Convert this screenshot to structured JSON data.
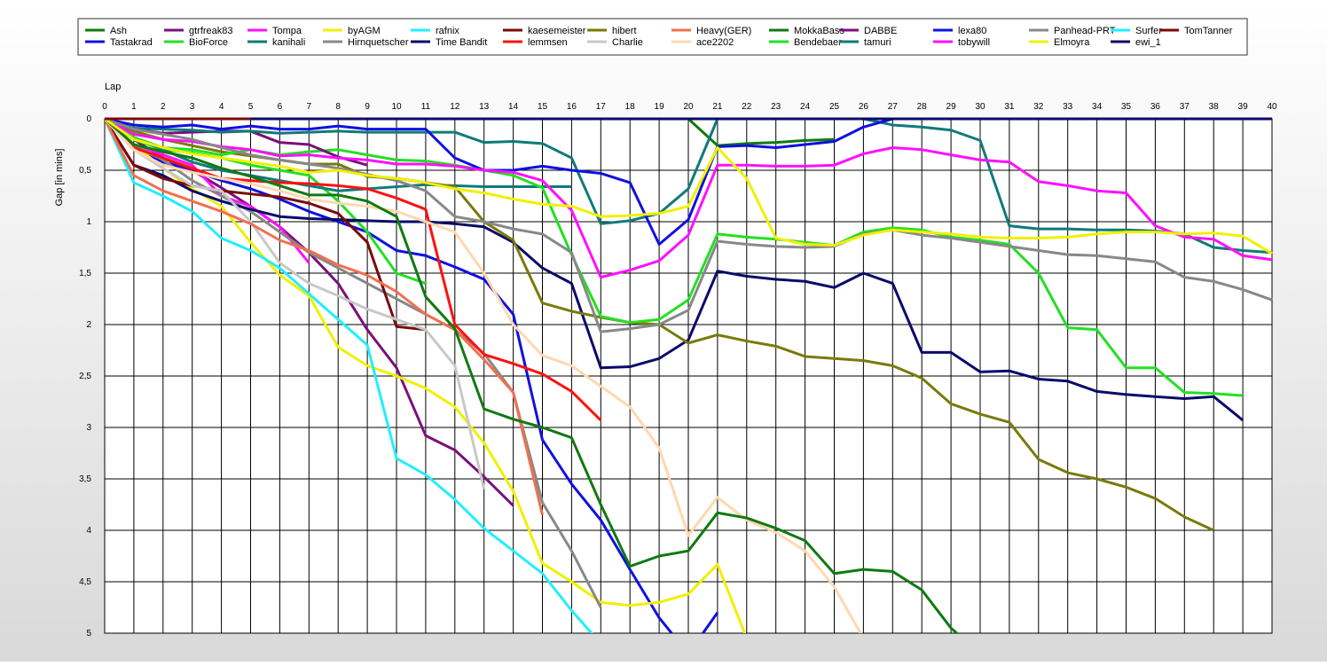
{
  "chart_data": {
    "type": "line",
    "xlabel": "Lap",
    "ylabel": "Gap [in mins]",
    "xlim": [
      0,
      40
    ],
    "ylim": [
      0,
      5
    ],
    "y_inverted": true,
    "grid": true,
    "legend_position": "top",
    "x_ticks": [
      "0",
      "1",
      "2",
      "3",
      "4",
      "5",
      "6",
      "7",
      "8",
      "9",
      "10",
      "11",
      "12",
      "13",
      "14",
      "15",
      "16",
      "17",
      "18",
      "19",
      "20",
      "21",
      "22",
      "23",
      "24",
      "25",
      "26",
      "27",
      "28",
      "29",
      "30",
      "31",
      "32",
      "33",
      "34",
      "35",
      "36",
      "37",
      "38",
      "39",
      "40"
    ],
    "y_ticks": [
      "0",
      "0.5",
      "1",
      "1.5",
      "2",
      "2.5",
      "3",
      "3.5",
      "4",
      "4.5",
      "5"
    ],
    "series": [
      {
        "name": "Ash",
        "color": "#0f7a0f",
        "values": [
          0,
          0,
          0,
          0,
          0,
          0,
          0,
          0,
          0,
          0,
          0,
          0,
          0,
          0,
          0,
          0,
          0,
          0,
          0,
          0,
          0,
          0.26,
          0.24,
          0.23,
          0.21,
          0.2
        ]
      },
      {
        "name": "Tastakrad",
        "color": "#1010e0",
        "values": [
          0,
          0.3,
          0.42,
          0.5,
          0.6,
          0.68,
          0.78,
          0.9,
          1.0,
          1.1,
          1.28,
          1.33,
          1.44,
          1.56,
          1.9,
          3.12,
          3.55,
          3.9,
          4.38,
          4.85,
          5.2,
          4.8
        ]
      },
      {
        "name": "gtrfreak83",
        "color": "#7a107a",
        "values": [
          0,
          0.2,
          0.38,
          0.5,
          0.67,
          0.85,
          1.05,
          1.3,
          1.6,
          2.05,
          2.42,
          3.08,
          3.22,
          3.48,
          3.76
        ]
      },
      {
        "name": "BioForce",
        "color": "#22e022",
        "values": [
          0,
          0.2,
          0.3,
          0.33,
          0.38,
          0.45,
          0.5,
          0.55,
          0.8,
          1.1,
          1.5,
          1.6
        ]
      },
      {
        "name": "Tompa",
        "color": "#ff10ff",
        "values": [
          0,
          0.25,
          0.35,
          0.45,
          0.75,
          0.85,
          1.05,
          1.4
        ]
      },
      {
        "name": "kanihali",
        "color": "#107a7a",
        "values": [
          0,
          0.18,
          0.3,
          0.42,
          0.5,
          0.55,
          0.6,
          0.65,
          0.7,
          0.68,
          0.66,
          0.64,
          0.65,
          0.66,
          0.66,
          0.66,
          0.66
        ]
      },
      {
        "name": "byAGM",
        "color": "#f0f000",
        "values": [
          0,
          0.25,
          0.48,
          0.68,
          0.85,
          1.2,
          1.52,
          1.72,
          2.22,
          2.4,
          2.5,
          2.62,
          2.8,
          3.15,
          3.62,
          4.32,
          4.5,
          4.7,
          4.73,
          4.7,
          4.62,
          4.33,
          5.05
        ]
      },
      {
        "name": "Hirnquetscher",
        "color": "#888888",
        "values": [
          0,
          0.25,
          0.4,
          0.6,
          0.75,
          0.9,
          1.1,
          1.3,
          1.45,
          1.6,
          1.75,
          1.9,
          2.05,
          2.28,
          2.66,
          3.73,
          4.2,
          4.75
        ]
      },
      {
        "name": "rafnix",
        "color": "#22eeff",
        "values": [
          0,
          0.62,
          0.75,
          0.9,
          1.16,
          1.28,
          1.45,
          1.7,
          1.95,
          2.2,
          3.3,
          3.46,
          3.7,
          3.98,
          4.2,
          4.42,
          4.78,
          5.1
        ]
      },
      {
        "name": "Time Bandit",
        "color": "#0a0a6a",
        "values": [
          0,
          0.45,
          0.55,
          0.7,
          0.8,
          0.88,
          0.95,
          0.97,
          0.98,
          0.99,
          1.0,
          1.0,
          1.02,
          1.05,
          1.2,
          1.45,
          1.6,
          2.42,
          2.41,
          2.33,
          2.15,
          1.48,
          1.53,
          1.56,
          1.58,
          1.64,
          1.5,
          1.6,
          2.27,
          2.27,
          2.46,
          2.45,
          2.53,
          2.55,
          2.65,
          2.68,
          2.7,
          2.72,
          2.7,
          2.93
        ]
      },
      {
        "name": "kaesemeister",
        "color": "#7a0a0a",
        "values": [
          0,
          0.45,
          0.58,
          0.65,
          0.7,
          0.73,
          0.76,
          0.82,
          0.92,
          1.2,
          2.02,
          2.05
        ]
      },
      {
        "name": "lemmsen",
        "color": "#ff1010",
        "values": [
          0,
          0.28,
          0.38,
          0.48,
          0.58,
          0.6,
          0.62,
          0.63,
          0.65,
          0.68,
          0.77,
          0.88,
          2.0,
          2.29,
          2.38,
          2.48,
          2.65,
          2.93
        ]
      },
      {
        "name": "hibert",
        "color": "#7a7a0a",
        "values": [
          0,
          0.12,
          0.2,
          0.26,
          0.32,
          0.36,
          0.4,
          0.44,
          0.44,
          0.56,
          0.58,
          0.62,
          0.66,
          1.0,
          1.18,
          1.79,
          1.87,
          1.93,
          1.98,
          2.0,
          2.18,
          2.1,
          2.16,
          2.21,
          2.31,
          2.33,
          2.35,
          2.4,
          2.52,
          2.77,
          2.87,
          2.95,
          3.31,
          3.44,
          3.5,
          3.58,
          3.69,
          3.87,
          4.0
        ]
      },
      {
        "name": "Charlie",
        "color": "#c8c8c8",
        "values": [
          0,
          0.3,
          0.48,
          0.65,
          0.7,
          1.0,
          1.4,
          1.6,
          1.72,
          1.85,
          1.95,
          2.05,
          2.4,
          3.6
        ]
      },
      {
        "name": "Heavy(GER)",
        "color": "#f07050",
        "values": [
          0,
          0.55,
          0.7,
          0.8,
          0.9,
          1.02,
          1.18,
          1.28,
          1.42,
          1.52,
          1.68,
          1.9,
          2.05,
          2.34,
          2.66,
          3.85
        ]
      },
      {
        "name": "ace2202",
        "color": "#ffd8b0",
        "values": [
          0,
          0.3,
          0.45,
          0.52,
          0.58,
          0.63,
          0.7,
          0.78,
          0.82,
          0.85,
          0.9,
          1.0,
          1.1,
          1.5,
          2.0,
          2.3,
          2.4,
          2.6,
          2.8,
          3.2,
          4.05,
          3.68,
          3.9,
          4.02,
          4.2,
          4.55,
          5.05
        ]
      },
      {
        "name": "MokkaBass",
        "color": "#107a10",
        "values": [
          0,
          0.25,
          0.32,
          0.38,
          0.48,
          0.56,
          0.65,
          0.74,
          0.74,
          0.8,
          0.95,
          1.73,
          2.04,
          2.82,
          2.92,
          3.0,
          3.1,
          3.75,
          4.35,
          4.25,
          4.2,
          3.83,
          3.88,
          3.98,
          4.1,
          4.42,
          4.38,
          4.4,
          4.58,
          4.95,
          5.2
        ]
      },
      {
        "name": "Bendebaer",
        "color": "#22e022",
        "values": [
          0,
          0.18,
          0.28,
          0.3,
          0.35,
          0.3,
          0.35,
          0.32,
          0.3,
          0.35,
          0.4,
          0.41,
          0.45,
          0.5,
          0.55,
          0.67,
          1.32,
          1.92,
          1.98,
          1.95,
          1.76,
          1.12,
          1.15,
          1.17,
          1.2,
          1.23,
          1.1,
          1.06,
          1.08,
          1.15,
          1.18,
          1.22,
          1.5,
          2.03,
          2.05,
          2.42,
          2.42,
          2.66,
          2.67,
          2.69
        ]
      },
      {
        "name": "DABBE",
        "color": "#7a107a",
        "values": [
          0,
          0.1,
          0.14,
          0.13,
          0.12,
          0.12,
          0.23,
          0.25,
          0.37,
          0.45
        ]
      },
      {
        "name": "tamuri",
        "color": "#107a7a",
        "values": [
          0,
          0.09,
          0.1,
          0.11,
          0.13,
          0.12,
          0.14,
          0.13,
          0.12,
          0.13,
          0.13,
          0.13,
          0.13,
          0.23,
          0.22,
          0.24,
          0.38,
          1.02,
          0.99,
          0.92,
          0.68,
          0,
          0,
          0,
          0,
          0,
          0,
          0.06,
          0.08,
          0.11,
          0.21,
          1.04,
          1.07,
          1.07,
          1.08,
          1.08,
          1.09,
          1.12,
          1.25,
          1.28,
          1.3
        ]
      },
      {
        "name": "lexa80",
        "color": "#1010e0",
        "values": [
          0,
          0.06,
          0.08,
          0.06,
          0.1,
          0.07,
          0.1,
          0.1,
          0.07,
          0.1,
          0.1,
          0.1,
          0.38,
          0.5,
          0.5,
          0.46,
          0.5,
          0.53,
          0.62,
          1.22,
          0.98,
          0.27,
          0.26,
          0.28,
          0.25,
          0.22,
          0.08,
          0
        ]
      },
      {
        "name": "tobywill",
        "color": "#ff10ff",
        "values": [
          0,
          0.15,
          0.2,
          0.22,
          0.27,
          0.3,
          0.36,
          0.35,
          0.38,
          0.4,
          0.44,
          0.44,
          0.46,
          0.5,
          0.52,
          0.6,
          0.89,
          1.54,
          1.47,
          1.38,
          1.13,
          0.45,
          0.45,
          0.46,
          0.46,
          0.45,
          0.34,
          0.28,
          0.3,
          0.35,
          0.4,
          0.42,
          0.61,
          0.65,
          0.7,
          0.72,
          1.04,
          1.15,
          1.17,
          1.33,
          1.37
        ]
      },
      {
        "name": "Panhead-PRT",
        "color": "#888888",
        "values": [
          0,
          0.1,
          0.15,
          0.2,
          0.28,
          0.35,
          0.4,
          0.44,
          0.48,
          0.54,
          0.6,
          0.7,
          0.95,
          1.0,
          1.07,
          1.12,
          1.3,
          2.07,
          2.04,
          2.0,
          1.86,
          1.19,
          1.22,
          1.24,
          1.25,
          1.24,
          1.12,
          1.08,
          1.13,
          1.16,
          1.2,
          1.24,
          1.28,
          1.32,
          1.33,
          1.36,
          1.39,
          1.54,
          1.58,
          1.66,
          1.76
        ]
      },
      {
        "name": "Elmoyra",
        "color": "#f0f000",
        "values": [
          0,
          0.2,
          0.28,
          0.34,
          0.38,
          0.42,
          0.46,
          0.52,
          0.5,
          0.55,
          0.58,
          0.62,
          0.68,
          0.72,
          0.78,
          0.83,
          0.85,
          0.95,
          0.94,
          0.92,
          0.85,
          0.28,
          0.58,
          1.16,
          1.22,
          1.23,
          1.13,
          1.08,
          1.1,
          1.12,
          1.15,
          1.16,
          1.16,
          1.15,
          1.12,
          1.1,
          1.1,
          1.12,
          1.11,
          1.14,
          1.31
        ]
      },
      {
        "name": "Surfer",
        "color": "#22eeff",
        "values": []
      },
      {
        "name": "ewi_1",
        "color": "#0a0a6a",
        "values": [
          0,
          0,
          0,
          0,
          0,
          0,
          0,
          0,
          0,
          0,
          0,
          0,
          0,
          0,
          0,
          0,
          0,
          0,
          0,
          0,
          0,
          0,
          0,
          0,
          0,
          0,
          0,
          0,
          0,
          0,
          0,
          0,
          0,
          0,
          0,
          0,
          0,
          0,
          0,
          0,
          0
        ]
      },
      {
        "name": "TomTanner",
        "color": "#7a0a0a",
        "values": [
          0,
          0,
          0,
          0,
          0,
          0
        ]
      }
    ]
  }
}
